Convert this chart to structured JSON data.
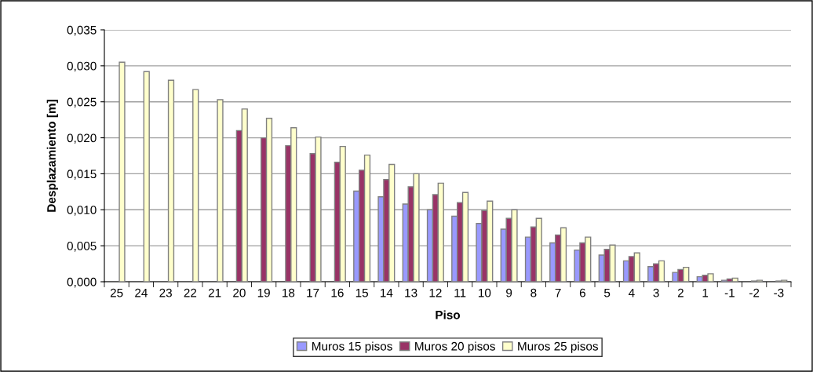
{
  "chart_data": {
    "type": "bar",
    "xlabel": "Piso",
    "ylabel": "Desplazamiento [m]",
    "categories": [
      "25",
      "24",
      "23",
      "22",
      "21",
      "20",
      "19",
      "18",
      "17",
      "16",
      "15",
      "14",
      "13",
      "12",
      "11",
      "10",
      "9",
      "8",
      "7",
      "6",
      "5",
      "4",
      "3",
      "2",
      "1",
      "-1",
      "-2",
      "-3"
    ],
    "series": [
      {
        "name": "Muros 15 pisos",
        "color": "#9999ff",
        "values": [
          null,
          null,
          null,
          null,
          null,
          null,
          null,
          null,
          null,
          null,
          0.0126,
          0.0118,
          0.0108,
          0.01,
          0.0091,
          0.0081,
          0.0073,
          0.0062,
          0.0054,
          0.0044,
          0.0037,
          0.0029,
          0.0021,
          0.0013,
          0.0007,
          0.0002,
          null,
          null
        ]
      },
      {
        "name": "Muros 20 pisos",
        "color": "#993366",
        "values": [
          null,
          null,
          null,
          null,
          null,
          0.021,
          0.02,
          0.0189,
          0.0178,
          0.0166,
          0.0155,
          0.0142,
          0.0132,
          0.0121,
          0.011,
          0.0099,
          0.0088,
          0.0076,
          0.0065,
          0.0054,
          0.0045,
          0.0035,
          0.0025,
          0.0017,
          0.0009,
          0.0004,
          0.0001,
          0.0001
        ]
      },
      {
        "name": "Muros 25 pisos",
        "color": "#ffffcc",
        "values": [
          0.0305,
          0.0292,
          0.028,
          0.0267,
          0.0253,
          0.024,
          0.0227,
          0.0214,
          0.0201,
          0.0188,
          0.0176,
          0.0163,
          0.015,
          0.0137,
          0.0124,
          0.0112,
          0.01,
          0.0088,
          0.0075,
          0.0062,
          0.0051,
          0.004,
          0.0029,
          0.002,
          0.0011,
          0.0005,
          0.0002,
          0.0002
        ]
      }
    ],
    "ylim": [
      0,
      0.035
    ],
    "yticks": [
      {
        "value": 0,
        "label": "0,000"
      },
      {
        "value": 0.005,
        "label": "0,005"
      },
      {
        "value": 0.01,
        "label": "0,010"
      },
      {
        "value": 0.015,
        "label": "0,015"
      },
      {
        "value": 0.02,
        "label": "0,020"
      },
      {
        "value": 0.025,
        "label": "0,025"
      },
      {
        "value": 0.03,
        "label": "0,030"
      },
      {
        "value": 0.035,
        "label": "0,035"
      }
    ],
    "grid": "y",
    "legend": "bottom"
  }
}
